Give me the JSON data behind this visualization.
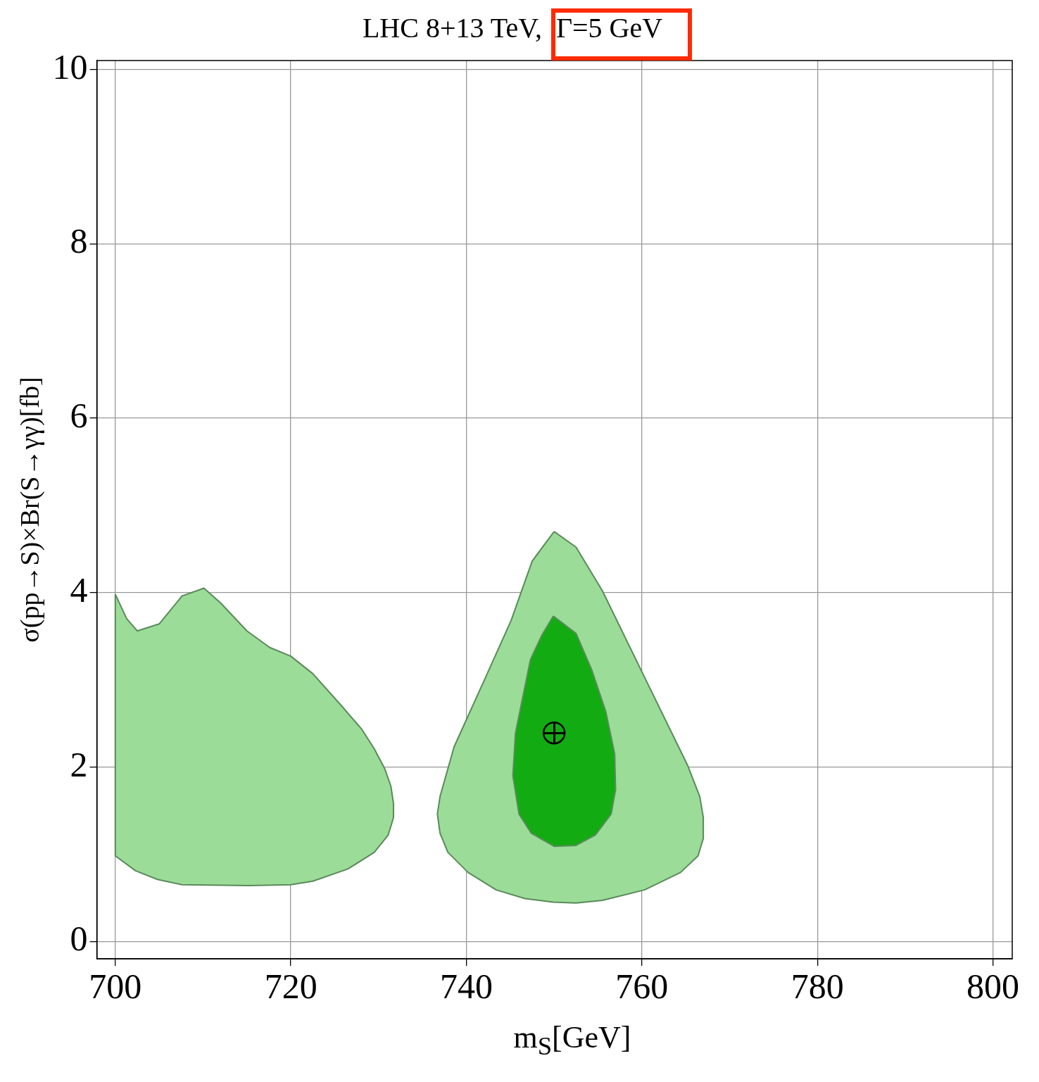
{
  "chart_data": {
    "type": "area",
    "title": "LHC 8+13 TeV,  Γ=5 GeV",
    "xlabel": "m$_{S}$[GeV]",
    "ylabel": "σ(pp→S)×Br(S→γγ)[fb]",
    "xlim": [
      697.9,
      802.2
    ],
    "ylim": [
      -0.2,
      10.1
    ],
    "xticks": [
      700,
      720,
      740,
      760,
      780,
      800
    ],
    "yticks": [
      0,
      2,
      4,
      6,
      8,
      10
    ],
    "grid": true,
    "legend": false,
    "series": [
      {
        "color": "#9bdc98",
        "x": [
          700,
          701.3,
          702.5,
          705,
          707.6,
          710.1,
          712,
          715,
          717.6,
          720,
          722.5,
          725.7,
          728.1,
          729.5,
          730.7,
          731.4,
          731.7,
          731.7,
          731.1,
          729.5,
          726.5,
          722.5,
          720,
          715.2,
          707.6,
          704.8,
          702.3,
          700
        ],
        "values": [
          3.98,
          3.7,
          3.56,
          3.64,
          3.96,
          4.05,
          3.88,
          3.56,
          3.37,
          3.27,
          3.07,
          2.71,
          2.43,
          2.21,
          1.98,
          1.78,
          1.58,
          1.42,
          1.22,
          1.02,
          0.83,
          0.69,
          0.65,
          0.64,
          0.65,
          0.71,
          0.81,
          0.98
        ]
      },
      {
        "color": "#9bdc98",
        "x": [
          750,
          752.5,
          755.5,
          760.3,
          765.2,
          766.6,
          767,
          767,
          766.4,
          764.4,
          760.3,
          755.5,
          752.5,
          749.9,
          746.7,
          743.4,
          740.2,
          737.9,
          737,
          736.7,
          737,
          738.6,
          742.2,
          745.1,
          747.5
        ],
        "values": [
          4.7,
          4.52,
          4.02,
          3.03,
          2.02,
          1.66,
          1.42,
          1.18,
          0.98,
          0.79,
          0.59,
          0.47,
          0.44,
          0.45,
          0.49,
          0.59,
          0.79,
          1.02,
          1.24,
          1.46,
          1.66,
          2.23,
          3.03,
          3.68,
          4.36
        ]
      },
      {
        "color": "#12ab12",
        "x": [
          749.9,
          752.5,
          754.3,
          755.9,
          756.9,
          757,
          756.5,
          754.7,
          752.5,
          750,
          747.4,
          746,
          745.3,
          745.6,
          747.3,
          748.6
        ],
        "values": [
          3.73,
          3.53,
          3.11,
          2.63,
          2.15,
          1.74,
          1.46,
          1.22,
          1.1,
          1.09,
          1.24,
          1.46,
          1.9,
          2.39,
          3.23,
          3.51
        ]
      },
      {
        "type": "scatter",
        "color": "#000000",
        "marker": "circle",
        "x": [
          750
        ],
        "values": [
          2.39
        ]
      }
    ]
  }
}
